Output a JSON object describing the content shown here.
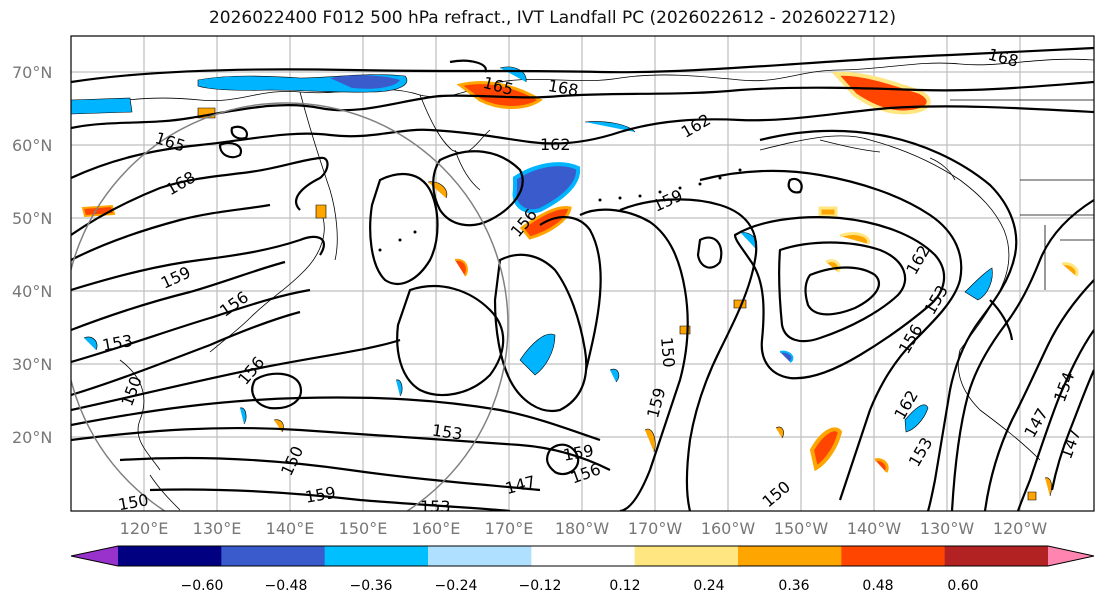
{
  "title": "2026022400 F012 500 hPa refract., IVT Landfall PC (2026022612 - 2026022712)",
  "lat_labels": [
    "70°N",
    "60°N",
    "50°N",
    "40°N",
    "30°N",
    "20°N"
  ],
  "lon_labels": [
    "120°E",
    "130°E",
    "140°E",
    "150°E",
    "160°E",
    "170°E",
    "180°W",
    "170°W",
    "160°W",
    "150°W",
    "140°W",
    "130°W",
    "120°W"
  ],
  "contour_labels": [
    {
      "text": "168"
    },
    {
      "text": "165"
    },
    {
      "text": "168"
    },
    {
      "text": "162"
    },
    {
      "text": "162"
    },
    {
      "text": "165"
    },
    {
      "text": "168"
    },
    {
      "text": "159"
    },
    {
      "text": "156"
    },
    {
      "text": "159"
    },
    {
      "text": "156"
    },
    {
      "text": "153"
    },
    {
      "text": "150"
    },
    {
      "text": "156"
    },
    {
      "text": "150"
    },
    {
      "text": "153"
    },
    {
      "text": "159"
    },
    {
      "text": "156"
    },
    {
      "text": "147"
    },
    {
      "text": "153"
    },
    {
      "text": "159"
    },
    {
      "text": "159"
    },
    {
      "text": "150"
    },
    {
      "text": "150"
    },
    {
      "text": "162"
    },
    {
      "text": "153"
    },
    {
      "text": "156"
    },
    {
      "text": "162"
    },
    {
      "text": "153"
    },
    {
      "text": "147"
    },
    {
      "text": "147"
    },
    {
      "text": "154"
    },
    {
      "text": "150"
    }
  ],
  "colorbar": {
    "ticks": [
      "−0.60",
      "−0.48",
      "−0.36",
      "−0.24",
      "−0.12",
      "0.12",
      "0.24",
      "0.36",
      "0.48",
      "0.60"
    ],
    "colors": [
      "#9932cc",
      "#000080",
      "#3a5bcc",
      "#00bfff",
      "#b0e0ff",
      "#ffffff",
      "#ffe680",
      "#ffa500",
      "#ff4500",
      "#b22222",
      "#ff85b0"
    ]
  },
  "colors": {
    "blue": "#00b4ff",
    "blue2": "#3a5bcc",
    "lightblue": "#b0e0ff",
    "yellow": "#ffe680",
    "orange": "#ffa500",
    "redorange": "#ff4500"
  }
}
